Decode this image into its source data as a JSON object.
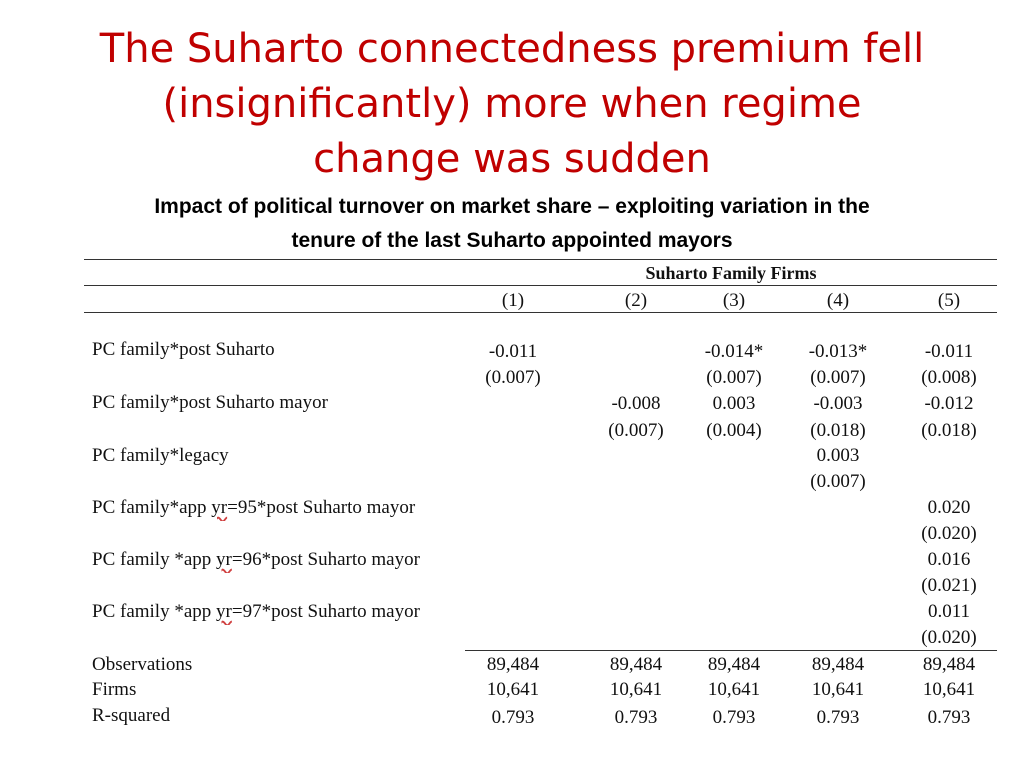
{
  "title": {
    "line1": "The Suharto connectedness premium fell",
    "line2": "(insignificantly) more when regime",
    "line3": "change was sudden"
  },
  "subtitle": {
    "line1": "Impact of political turnover on market share – exploiting variation in the",
    "line2": "tenure of the last Suharto appointed mayors"
  },
  "table": {
    "group_header": "Suharto Family Firms",
    "columns": [
      "(1)",
      "(2)",
      "(3)",
      "(4)",
      "(5)"
    ],
    "rows": [
      {
        "label": "PC family*post Suharto",
        "coef": [
          "-0.011",
          "",
          "-0.014*",
          "-0.013*",
          "-0.011"
        ],
        "se": [
          "(0.007)",
          "",
          "(0.007)",
          "(0.007)",
          "(0.008)"
        ]
      },
      {
        "label": "PC family*post Suharto mayor",
        "coef": [
          "",
          "-0.008",
          "0.003",
          "-0.003",
          "-0.012"
        ],
        "se": [
          "",
          "(0.007)",
          "(0.004)",
          "(0.018)",
          "(0.018)"
        ]
      },
      {
        "label": "PC family*legacy",
        "coef": [
          "",
          "",
          "",
          "0.003",
          ""
        ],
        "se": [
          "",
          "",
          "",
          "(0.007)",
          ""
        ]
      },
      {
        "label_pre": "PC family*app ",
        "label_yr": "yr",
        "label_post": "=95*post Suharto mayor",
        "coef": [
          "",
          "",
          "",
          "",
          "0.020"
        ],
        "se": [
          "",
          "",
          "",
          "",
          "(0.020)"
        ]
      },
      {
        "label_pre": "PC family *app ",
        "label_yr": "yr",
        "label_post": "=96*post Suharto mayor",
        "coef": [
          "",
          "",
          "",
          "",
          "0.016"
        ],
        "se": [
          "",
          "",
          "",
          "",
          "(0.021)"
        ]
      },
      {
        "label_pre": "PC family *app ",
        "label_yr": "yr",
        "label_post": "=97*post Suharto mayor",
        "coef": [
          "",
          "",
          "",
          "",
          "0.011"
        ],
        "se": [
          "",
          "",
          "",
          "",
          "(0.020)"
        ]
      }
    ],
    "stats": [
      {
        "label": "Observations",
        "values": [
          "89,484",
          "89,484",
          "89,484",
          "89,484",
          "89,484"
        ]
      },
      {
        "label": "Firms",
        "values": [
          "10,641",
          "10,641",
          "10,641",
          "10,641",
          "10,641"
        ]
      },
      {
        "label": "R-squared",
        "values": [
          "0.793",
          "0.793",
          "0.793",
          "0.793",
          "0.793"
        ]
      }
    ]
  }
}
